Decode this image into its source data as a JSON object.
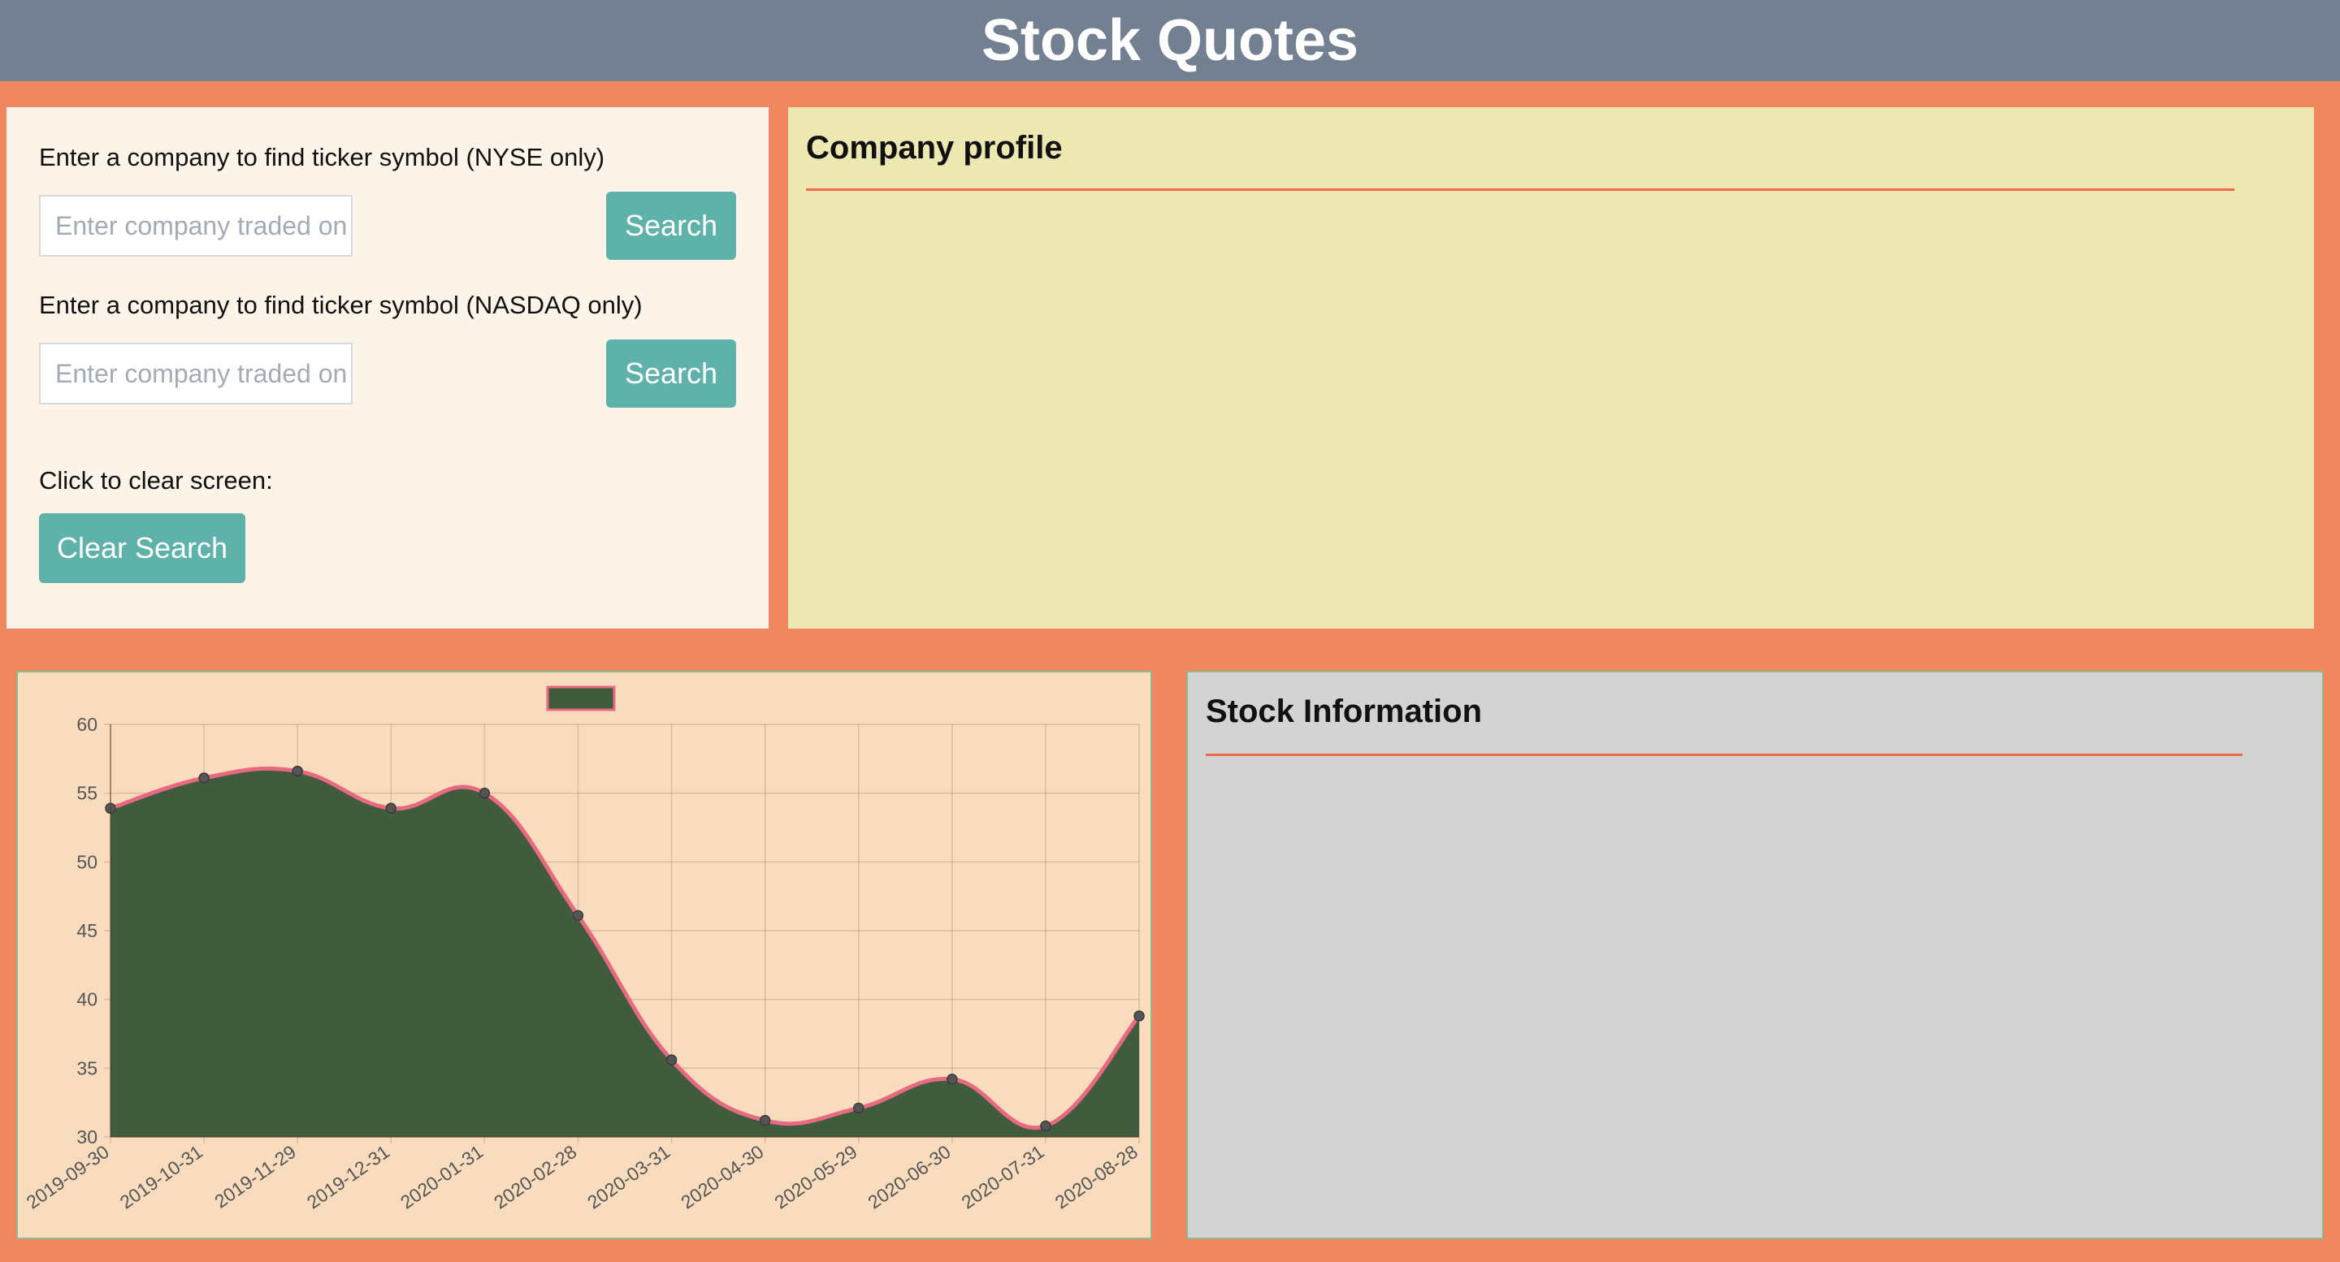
{
  "header": {
    "title": "Stock Quotes"
  },
  "search": {
    "nyse_label": "Enter a company to find ticker symbol (NYSE only)",
    "nyse_placeholder": "Enter company traded on NYSE...",
    "nyse_button": "Search",
    "nasdaq_label": "Enter a company to find ticker symbol (NASDAQ only)",
    "nasdaq_placeholder": "Enter company traded on NASDAQ...",
    "nasdaq_button": "Search",
    "clear_label": "Click to clear screen:",
    "clear_button": "Clear Search"
  },
  "profile": {
    "title": "Company profile"
  },
  "stock_info": {
    "title": "Stock Information"
  },
  "colors": {
    "page_background": "#f0875e",
    "header_background": "#728091",
    "button": "#5fb2aa",
    "profile_background": "#ede8b2",
    "chart_background": "#f8dcbd",
    "chart_fill": "#405c3d",
    "chart_line": "#e86a80",
    "stock_background": "#d3d3d3",
    "accent_rule": "#ec6a48"
  },
  "chart_data": {
    "type": "area",
    "title": "",
    "xlabel": "",
    "ylabel": "",
    "legend": {
      "placement": "top-center",
      "label": ""
    },
    "ylim": [
      30,
      60
    ],
    "y_ticks": [
      30,
      35,
      40,
      45,
      50,
      55,
      60
    ],
    "grid": true,
    "categories": [
      "2019-09-30",
      "2019-10-31",
      "2019-11-29",
      "2019-12-31",
      "2020-01-31",
      "2020-02-28",
      "2020-03-31",
      "2020-04-30",
      "2020-05-29",
      "2020-06-30",
      "2020-07-31",
      "2020-08-28"
    ],
    "series": [
      {
        "values": [
          53.9,
          56.1,
          56.6,
          53.9,
          55.0,
          46.1,
          35.6,
          31.2,
          32.1,
          34.2,
          30.8,
          38.8
        ]
      }
    ]
  }
}
